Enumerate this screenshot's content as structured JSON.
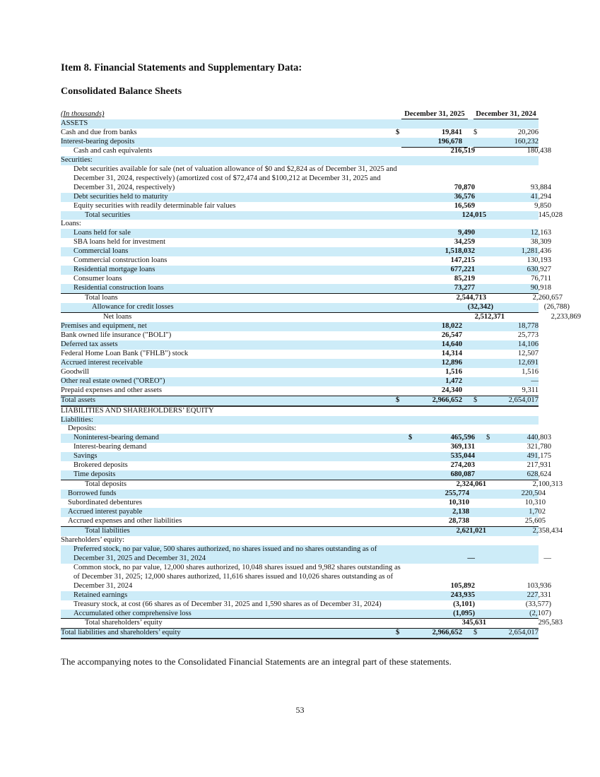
{
  "heading": "Item 8. Financial Statements and Supplementary Data:",
  "subheading": "Consolidated Balance Sheets",
  "table": {
    "unit_label": "(In thousands)",
    "columns": [
      "December 31, 2025",
      "December 31, 2024"
    ],
    "rows": [
      {
        "label": "ASSETS",
        "level": 0
      },
      {
        "label": "Cash and due from banks",
        "level": 0,
        "d1": "$",
        "v1": "19,841",
        "d2": "$",
        "v2": "20,206"
      },
      {
        "label": "Interest-bearing deposits",
        "level": 0,
        "v1": "196,678",
        "v2": "160,232",
        "rule": "sub"
      },
      {
        "label": "Cash and cash equivalents",
        "level": 2,
        "v1": "216,519",
        "v2": "180,438"
      },
      {
        "label": "Securities:",
        "level": 0
      },
      {
        "label": "Debt securities available for sale (net of valuation allowance of $0 and $2,824 as of December 31, 2025 and  December 31, 2024, respectively) (amortized cost of $72,474 and $100,212 at December 31, 2025 and December 31, 2024, respectively)",
        "level": 2,
        "v1": "70,870",
        "v2": "93,884"
      },
      {
        "label": "Debt securities held to maturity",
        "level": 2,
        "v1": "36,576",
        "v2": "41,294"
      },
      {
        "label": "Equity securities with readily determinable fair values",
        "level": 2,
        "v1": "16,569",
        "v2": "9,850",
        "rule": "sub"
      },
      {
        "label": "Total securities",
        "level": 3,
        "v1": "124,015",
        "v2": "145,028"
      },
      {
        "label": "Loans:",
        "level": 0
      },
      {
        "label": "Loans held for sale",
        "level": 2,
        "v1": "9,490",
        "v2": "12,163"
      },
      {
        "label": "SBA loans held for investment",
        "level": 2,
        "v1": "34,259",
        "v2": "38,309"
      },
      {
        "label": "Commercial loans",
        "level": 2,
        "v1": "1,518,032",
        "v2": "1,281,436"
      },
      {
        "label": "Commercial construction loans",
        "level": 2,
        "v1": "147,215",
        "v2": "130,193"
      },
      {
        "label": "Residential mortgage loans",
        "level": 2,
        "v1": "677,221",
        "v2": "630,927"
      },
      {
        "label": "Consumer loans",
        "level": 2,
        "v1": "85,219",
        "v2": "76,711"
      },
      {
        "label": "Residential construction loans",
        "level": 2,
        "v1": "73,277",
        "v2": "90,918",
        "rule": "full"
      },
      {
        "label": "Total loans",
        "level": 3,
        "v1": "2,544,713",
        "v2": "2,260,657"
      },
      {
        "label": "Allowance for credit losses",
        "level": 4,
        "v1": "(32,342)",
        "v2": "(26,788)",
        "rule": "full"
      },
      {
        "label": "Net loans",
        "level": 5,
        "v1": "2,512,371",
        "v2": "2,233,869"
      },
      {
        "label": "Premises and equipment, net",
        "level": 0,
        "v1": "18,022",
        "v2": "18,778"
      },
      {
        "label": "Bank owned life insurance (\"BOLI\")",
        "level": 0,
        "v1": "26,547",
        "v2": "25,773"
      },
      {
        "label": "Deferred tax assets",
        "level": 0,
        "v1": "14,640",
        "v2": "14,106"
      },
      {
        "label": "Federal Home Loan Bank (\"FHLB\") stock",
        "level": 0,
        "v1": "14,314",
        "v2": "12,507"
      },
      {
        "label": "Accrued interest receivable",
        "level": 0,
        "v1": "12,896",
        "v2": "12,691"
      },
      {
        "label": "Goodwill",
        "level": 0,
        "v1": "1,516",
        "v2": "1,516"
      },
      {
        "label": "Other real estate owned (\"OREO\")",
        "level": 0,
        "v1": "1,472",
        "v2": "—"
      },
      {
        "label": "Prepaid expenses and other assets",
        "level": 0,
        "v1": "24,340",
        "v2": "9,311",
        "rule": "full"
      },
      {
        "label": "Total assets",
        "level": 0,
        "d1": "$",
        "v1": "2,966,652",
        "d2": "$",
        "v2": "2,654,017",
        "rule": "dbl"
      },
      {
        "label": "LIABILITIES AND SHAREHOLDERS’ EQUITY",
        "level": 0
      },
      {
        "label": "Liabilities:",
        "level": 0
      },
      {
        "label": "Deposits:",
        "level": 1
      },
      {
        "label": "Noninterest-bearing demand",
        "level": 2,
        "d1": "$",
        "v1": "465,596",
        "d2": "$",
        "v2": "440,803"
      },
      {
        "label": "Interest-bearing demand",
        "level": 2,
        "v1": "369,131",
        "v2": "321,780"
      },
      {
        "label": "Savings",
        "level": 2,
        "v1": "535,044",
        "v2": "491,175"
      },
      {
        "label": "Brokered deposits",
        "level": 2,
        "v1": "274,203",
        "v2": "217,931"
      },
      {
        "label": "Time deposits",
        "level": 2,
        "v1": "680,087",
        "v2": "628,624",
        "rule": "full"
      },
      {
        "label": "Total deposits",
        "level": 3,
        "v1": "2,324,061",
        "v2": "2,100,313"
      },
      {
        "label": "Borrowed funds",
        "level": 1,
        "v1": "255,774",
        "v2": "220,504"
      },
      {
        "label": "Subordinated debentures",
        "level": 1,
        "v1": "10,310",
        "v2": "10,310"
      },
      {
        "label": "Accrued interest payable",
        "level": 1,
        "v1": "2,138",
        "v2": "1,702"
      },
      {
        "label": "Accrued expenses and other liabilities",
        "level": 1,
        "v1": "28,738",
        "v2": "25,605",
        "rule": "full"
      },
      {
        "label": "Total liabilities",
        "level": 3,
        "v1": "2,621,021",
        "v2": "2,358,434"
      },
      {
        "label": "Shareholders’ equity:",
        "level": 0
      },
      {
        "label": "Preferred stock, no par value, 500 shares authorized, no shares issued and no shares outstanding as of December 31, 2025 and December 31, 2024",
        "level": 2,
        "v1": "—",
        "v2": "—"
      },
      {
        "label": "Common stock, no par value, 12,000 shares authorized, 10,048 shares issued and 9,982 shares outstanding as of December 31, 2025; 12,000 shares authorized, 11,616 shares issued and 10,026 shares outstanding as of December 31, 2024",
        "level": 2,
        "v1": "105,892",
        "v2": "103,936"
      },
      {
        "label": "Retained earnings",
        "level": 2,
        "v1": "243,935",
        "v2": "227,331"
      },
      {
        "label": "Treasury stock, at cost (66 shares as of December 31, 2025 and 1,590 shares as of December 31, 2024)",
        "level": 2,
        "v1": "(3,101)",
        "v2": "(33,577)"
      },
      {
        "label": "Accumulated other comprehensive loss",
        "level": 2,
        "v1": "(1,095)",
        "v2": "(2,107)",
        "rule": "full"
      },
      {
        "label": "Total shareholders’ equity",
        "level": 3,
        "v1": "345,631",
        "v2": "295,583",
        "rule": "full"
      },
      {
        "label": "Total liabilities and shareholders’ equity",
        "level": 0,
        "d1": "$",
        "v1": "2,966,652",
        "d2": "$",
        "v2": "2,654,017",
        "rule": "dbl"
      }
    ]
  },
  "footnote": "The accompanying notes to the Consolidated Financial Statements are an integral part of these statements.",
  "page_number": "53"
}
